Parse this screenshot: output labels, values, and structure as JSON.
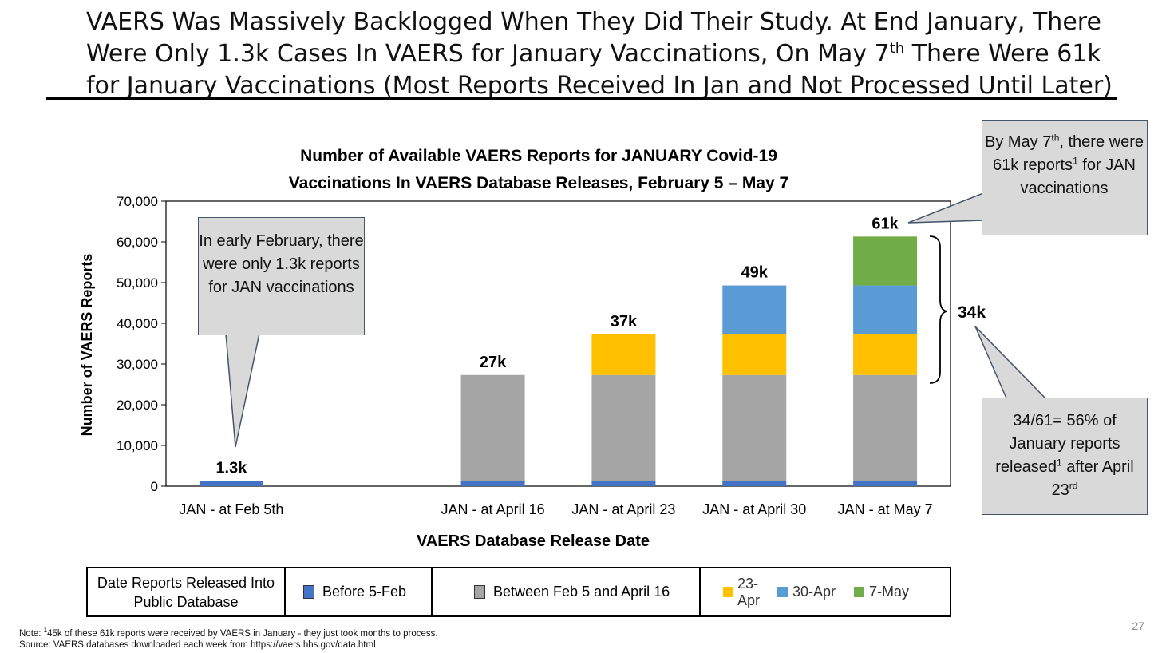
{
  "slide": {
    "title_parts": {
      "a": "VAERS Was Massively Backlogged When They Did Their Study.  At End January, There Were Only 1.3k Cases In VAERS for January Vaccinations, On May 7",
      "sup": "th",
      "b": " There Were 61k for January Vaccinations (Most Reports Received In Jan and Not Processed Until Later)"
    },
    "page_number": "27",
    "note_prefix": "Note:  ",
    "note_sup": "1",
    "note_text": "45k of these 61k reports were received by VAERS in January  - they just took months to process.",
    "source_text": "Source: VAERS databases downloaded each week from   https://vaers.hhs.gov/data.html"
  },
  "callouts": {
    "early_feb": "In early February, there were only 1.3k reports for JAN vaccinations",
    "may7": {
      "a": "By May 7",
      "sup1": "th",
      "b": ", there were 61k reports",
      "sup2": "1",
      "c": " for JAN vaccinations"
    },
    "pct": {
      "a": "34/61= 56% of January reports released",
      "sup1": "1",
      "b": " after April 23",
      "sup2": "rd"
    }
  },
  "legend": {
    "heading": "Date Reports Released Into Public Database",
    "items": [
      {
        "label": "Before 5-Feb",
        "color": "#4472c4"
      },
      {
        "label": "Between Feb 5 and April 16",
        "color": "#a5a5a5"
      },
      {
        "label": "23-Apr",
        "color": "#ffc000"
      },
      {
        "label": "30-Apr",
        "color": "#5b9bd5"
      },
      {
        "label": "7-May",
        "color": "#70ad47"
      }
    ]
  },
  "chart_data": {
    "type": "bar",
    "stacked": true,
    "title": "Number of Available VAERS Reports for JANUARY Covid-19 Vaccinations In VAERS Database Releases, February 5 – May 7",
    "xlabel": "VAERS Database Release Date",
    "ylabel": "Number of VAERS Reports",
    "ylim": [
      0,
      70000
    ],
    "yticks": [
      0,
      10000,
      20000,
      30000,
      40000,
      50000,
      60000,
      70000
    ],
    "ytick_labels": [
      "0",
      "10,000",
      "20,000",
      "30,000",
      "40,000",
      "50,000",
      "60,000",
      "70,000"
    ],
    "categories": [
      "JAN - at Feb 5th",
      "",
      "JAN - at April 16",
      "JAN - at April 23",
      "JAN - at April 30",
      "JAN - at May 7"
    ],
    "series": [
      {
        "name": "Before 5-Feb",
        "color": "#4472c4",
        "values": [
          1300,
          0,
          1300,
          1300,
          1300,
          1300
        ]
      },
      {
        "name": "Between Feb 5 and April 16",
        "color": "#a5a5a5",
        "values": [
          0,
          0,
          26000,
          26000,
          26000,
          26000
        ]
      },
      {
        "name": "23-Apr",
        "color": "#ffc000",
        "values": [
          0,
          0,
          0,
          10000,
          10000,
          10000
        ]
      },
      {
        "name": "30-Apr",
        "color": "#5b9bd5",
        "values": [
          0,
          0,
          0,
          0,
          12000,
          12000
        ]
      },
      {
        "name": "7-May",
        "color": "#70ad47",
        "values": [
          0,
          0,
          0,
          0,
          0,
          12000
        ]
      }
    ],
    "data_labels": [
      "1.3k",
      "",
      "27k",
      "37k",
      "49k",
      "61k"
    ],
    "bracket_label": "34k",
    "grid": false
  }
}
